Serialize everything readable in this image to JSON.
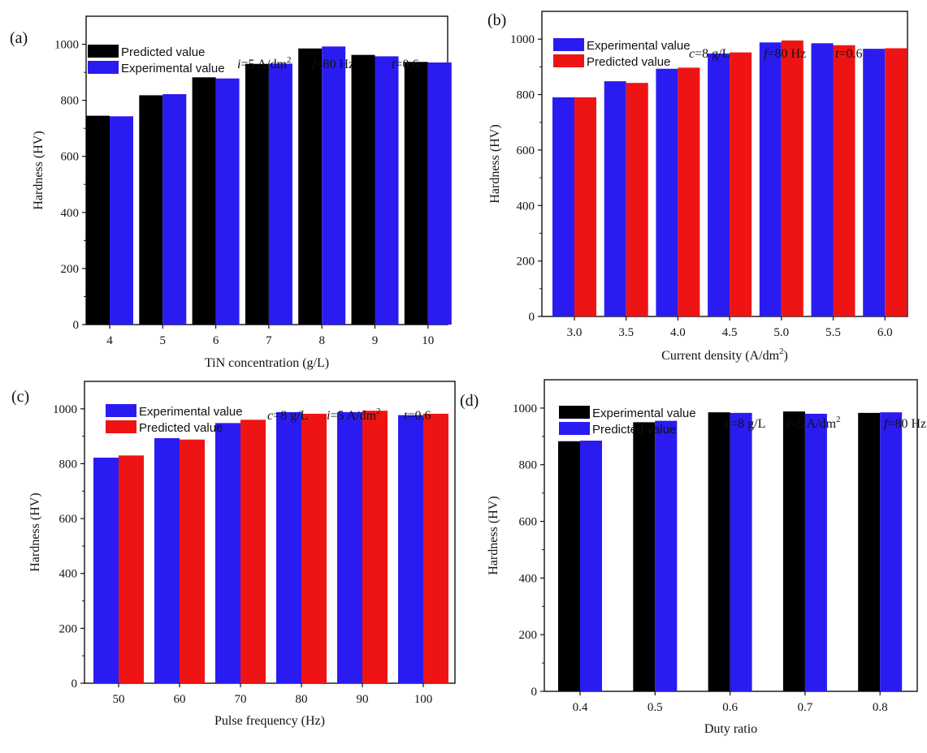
{
  "chart_data": [
    {
      "panel_label": "(a)",
      "type": "bar",
      "categories": [
        "4",
        "5",
        "6",
        "7",
        "8",
        "9",
        "10"
      ],
      "series": [
        {
          "name": "Predicted value",
          "color": "#000000",
          "values": [
            745,
            818,
            882,
            930,
            985,
            962,
            937
          ]
        },
        {
          "name": "Experimental value",
          "color": "#2a1cf0",
          "values": [
            743,
            822,
            878,
            931,
            992,
            957,
            935
          ]
        }
      ],
      "xlabel": "TiN concentration (g/L)",
      "ylabel": "Hardness (HV)",
      "yticks": [
        0,
        200,
        400,
        600,
        800,
        1000
      ],
      "ylim": [
        0,
        1100
      ],
      "legend_position": "top-left",
      "conditions": [
        {
          "var": "i",
          "text": "=5 A/dm",
          "sup": "2"
        },
        {
          "var": "f",
          "text": "=80 Hz",
          "sup": ""
        },
        {
          "var": "t",
          "text": "=0.6",
          "sup": ""
        }
      ]
    },
    {
      "panel_label": "(b)",
      "type": "bar",
      "categories": [
        "3.0",
        "3.5",
        "4.0",
        "4.5",
        "5.0",
        "5.5",
        "6.0"
      ],
      "series": [
        {
          "name": "Experimental value",
          "color": "#2a1cf0",
          "values": [
            790,
            848,
            893,
            948,
            988,
            985,
            965
          ]
        },
        {
          "name": "Predicted value",
          "color": "#ee1414",
          "values": [
            790,
            842,
            897,
            952,
            995,
            978,
            967
          ]
        }
      ],
      "xlabel": "Current density (A/dm",
      "xlabel_sup": "2",
      "xlabel_end": ")",
      "ylabel": "Hardness (HV)",
      "yticks": [
        0,
        200,
        400,
        600,
        800,
        1000
      ],
      "ylim": [
        0,
        1100
      ],
      "legend_position": "top-left",
      "conditions": [
        {
          "var": "c",
          "text": "=8 g/L",
          "sup": ""
        },
        {
          "var": "f",
          "text": "=80 Hz",
          "sup": ""
        },
        {
          "var": "t",
          "text": "=0.6",
          "sup": ""
        }
      ]
    },
    {
      "panel_label": "(c)",
      "type": "bar",
      "categories": [
        "50",
        "60",
        "70",
        "80",
        "90",
        "100"
      ],
      "series": [
        {
          "name": "Experimental value",
          "color": "#2a1cf0",
          "values": [
            822,
            893,
            948,
            988,
            988,
            977
          ]
        },
        {
          "name": "Predicted value",
          "color": "#ee1414",
          "values": [
            830,
            888,
            960,
            982,
            993,
            982
          ]
        }
      ],
      "xlabel": "Pulse frequency (Hz)",
      "ylabel": "Hardness (HV)",
      "yticks": [
        0,
        200,
        400,
        600,
        800,
        1000
      ],
      "ylim": [
        0,
        1100
      ],
      "legend_position": "top-left",
      "conditions": [
        {
          "var": "c",
          "text": "=8 g/L",
          "sup": ""
        },
        {
          "var": "i",
          "text": "=5 A/dm",
          "sup": "2"
        },
        {
          "var": "t",
          "text": "=0.6",
          "sup": ""
        }
      ]
    },
    {
      "panel_label": "(d)",
      "type": "bar",
      "categories": [
        "0.4",
        "0.5",
        "0.6",
        "0.7",
        "0.8"
      ],
      "series": [
        {
          "name": "Experimental value",
          "color": "#000000",
          "values": [
            883,
            950,
            985,
            988,
            983
          ]
        },
        {
          "name": "Predicted value",
          "color": "#2a1cf0",
          "values": [
            885,
            955,
            983,
            980,
            985
          ]
        }
      ],
      "xlabel": "Duty ratio",
      "ylabel": "Hardness (HV)",
      "yticks": [
        0,
        200,
        400,
        600,
        800,
        1000
      ],
      "ylim": [
        0,
        1100
      ],
      "legend_position": "top-left",
      "conditions": [
        {
          "var": "c",
          "text": "=8 g/L",
          "sup": ""
        },
        {
          "var": "i",
          "text": "=5 A/dm",
          "sup": "2"
        },
        {
          "var": "f",
          "text": "=80 Hz",
          "sup": ""
        }
      ]
    }
  ]
}
